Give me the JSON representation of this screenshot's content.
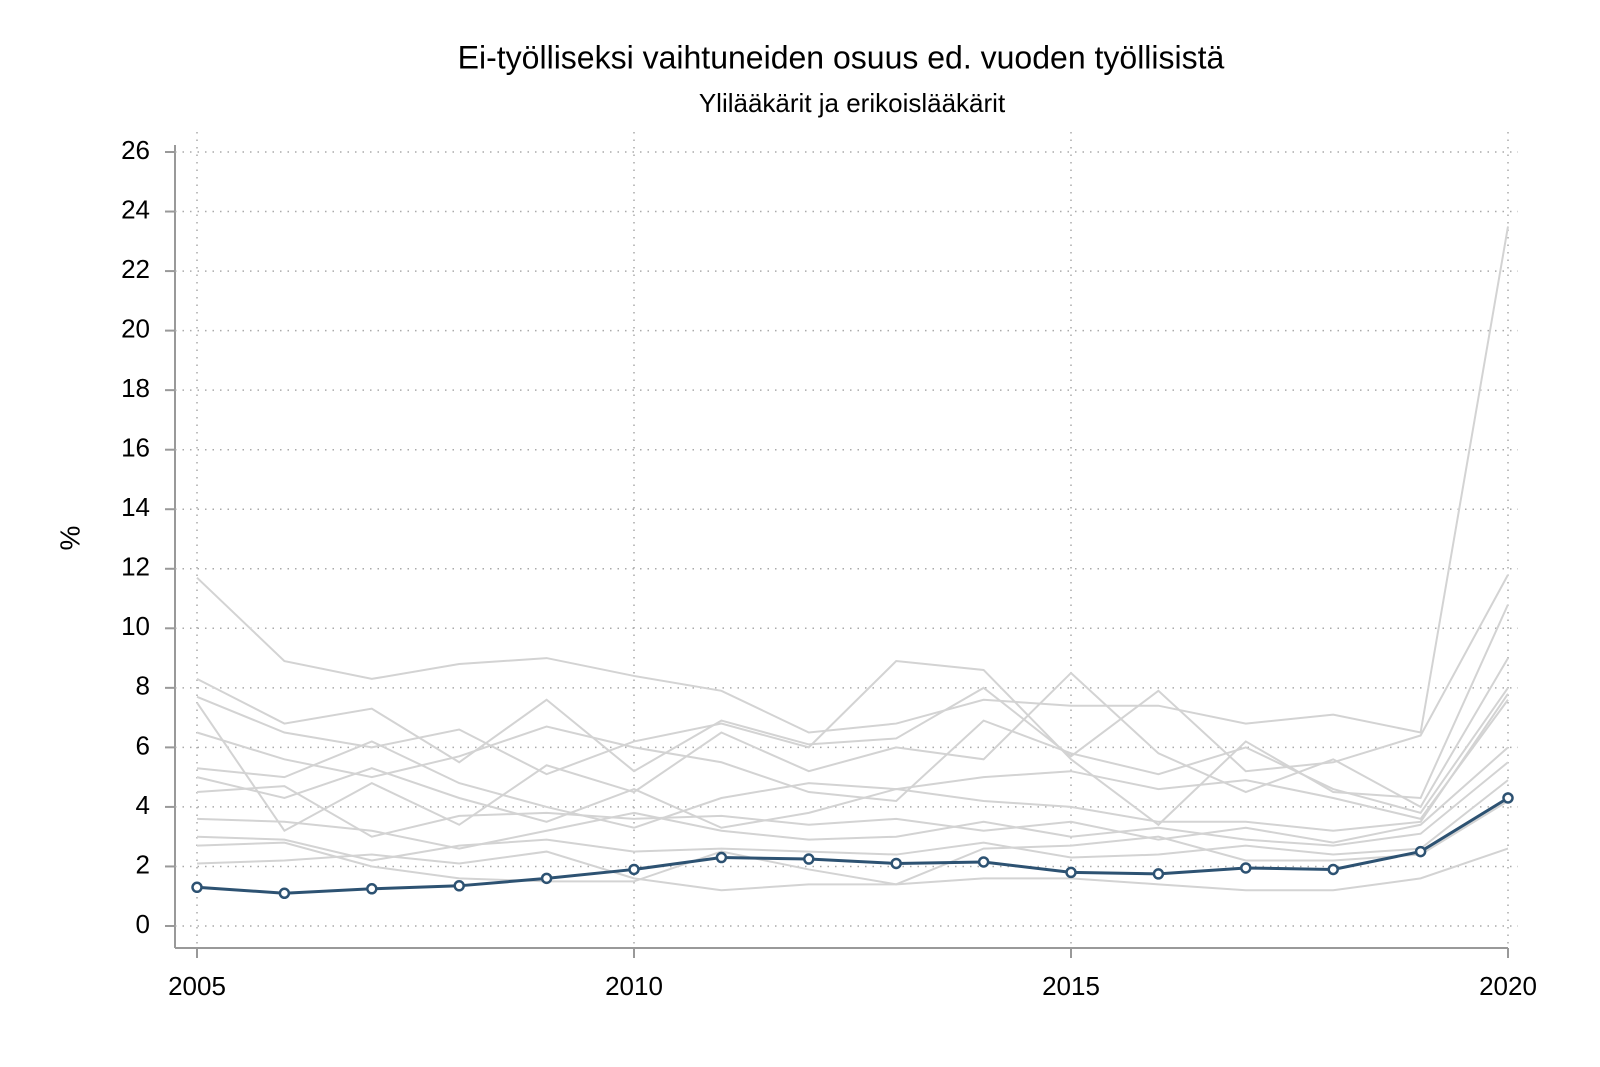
{
  "chart_data": {
    "type": "line",
    "title": "Ei-työlliseksi vaihtuneiden osuus ed. vuoden työllisistä",
    "subtitle": "Ylilääkärit ja erikoislääkärit",
    "y_label": "%",
    "x": [
      2005,
      2006,
      2007,
      2008,
      2009,
      2010,
      2011,
      2012,
      2013,
      2014,
      2015,
      2016,
      2017,
      2018,
      2019,
      2020
    ],
    "xlim": [
      2005,
      2020
    ],
    "xticks": [
      2005,
      2010,
      2015,
      2020
    ],
    "ylim": [
      0,
      26
    ],
    "yticks": [
      0,
      2,
      4,
      6,
      8,
      10,
      12,
      14,
      16,
      18,
      20,
      22,
      24,
      26
    ],
    "grid": true,
    "series": [
      {
        "color": "#d3d3d3",
        "values": [
          11.7,
          8.9,
          8.3,
          8.8,
          9.0,
          8.4,
          7.9,
          6.5,
          6.8,
          7.6,
          7.4,
          7.4,
          6.8,
          7.1,
          6.5,
          23.5
        ]
      },
      {
        "color": "#d3d3d3",
        "values": [
          8.3,
          6.8,
          7.3,
          5.5,
          7.6,
          5.2,
          6.9,
          6.1,
          6.3,
          8.0,
          5.7,
          7.9,
          5.2,
          5.5,
          6.4,
          11.8
        ]
      },
      {
        "color": "#d3d3d3",
        "values": [
          7.7,
          6.5,
          6.0,
          6.6,
          5.1,
          6.2,
          6.8,
          6.0,
          8.9,
          8.6,
          5.6,
          3.4,
          6.2,
          4.5,
          4.3,
          10.8
        ]
      },
      {
        "color": "#d3d3d3",
        "values": [
          7.5,
          3.2,
          4.8,
          3.4,
          5.4,
          4.5,
          6.5,
          5.2,
          6.0,
          5.6,
          8.5,
          5.8,
          4.5,
          5.6,
          4.0,
          9.0
        ]
      },
      {
        "color": "#d3d3d3",
        "values": [
          6.5,
          5.6,
          5.0,
          5.7,
          6.7,
          6.0,
          5.5,
          4.5,
          4.2,
          6.9,
          5.8,
          5.1,
          6.0,
          4.6,
          3.8,
          8.0
        ]
      },
      {
        "color": "#d3d3d3",
        "values": [
          5.3,
          5.0,
          6.2,
          4.8,
          4.0,
          3.3,
          4.3,
          4.8,
          4.6,
          5.0,
          5.2,
          4.6,
          4.9,
          4.3,
          3.6,
          7.6
        ]
      },
      {
        "color": "#d3d3d3",
        "values": [
          5.0,
          4.3,
          5.3,
          4.3,
          3.5,
          4.6,
          3.3,
          3.8,
          4.6,
          4.2,
          4.0,
          3.5,
          3.5,
          3.2,
          3.5,
          7.8
        ]
      },
      {
        "color": "#d3d3d3",
        "values": [
          4.5,
          4.7,
          3.0,
          3.7,
          3.8,
          3.6,
          3.7,
          3.4,
          3.6,
          3.2,
          3.5,
          2.9,
          3.3,
          2.8,
          3.4,
          6.0
        ]
      },
      {
        "color": "#d3d3d3",
        "values": [
          3.6,
          3.5,
          3.2,
          2.6,
          3.2,
          3.8,
          3.2,
          2.9,
          3.0,
          3.5,
          3.0,
          3.3,
          2.9,
          2.7,
          3.1,
          5.5
        ]
      },
      {
        "color": "#d3d3d3",
        "values": [
          3.0,
          2.9,
          2.2,
          2.7,
          2.9,
          2.5,
          2.6,
          2.5,
          2.4,
          2.8,
          2.3,
          2.4,
          2.7,
          2.4,
          2.6,
          4.9
        ]
      },
      {
        "color": "#d3d3d3",
        "values": [
          2.1,
          2.2,
          2.4,
          2.1,
          2.5,
          1.6,
          1.2,
          1.4,
          1.4,
          1.6,
          1.6,
          1.4,
          1.2,
          1.2,
          1.6,
          2.6
        ]
      },
      {
        "color": "#d3d3d3",
        "values": [
          2.7,
          2.8,
          2.0,
          1.6,
          1.5,
          1.5,
          2.5,
          1.9,
          1.4,
          2.6,
          2.7,
          3.0,
          2.2,
          2.2,
          2.4,
          4.2
        ]
      },
      {
        "color": "#2d5272",
        "markers": true,
        "values": [
          1.3,
          1.1,
          1.25,
          1.35,
          1.6,
          1.9,
          2.3,
          2.25,
          2.1,
          2.15,
          1.8,
          1.75,
          1.95,
          1.9,
          2.5,
          4.3
        ]
      }
    ]
  }
}
